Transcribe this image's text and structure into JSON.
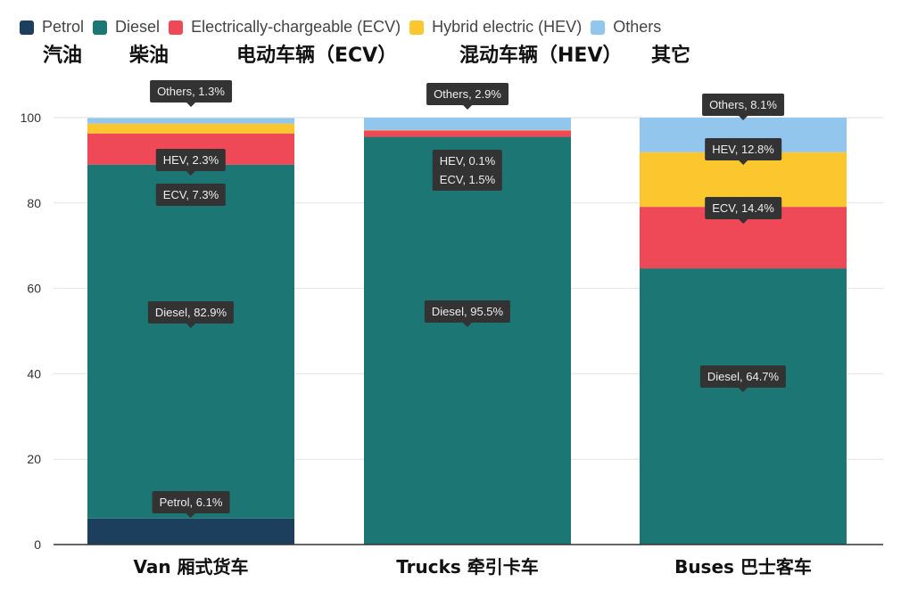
{
  "legend": [
    {
      "label": "Petrol",
      "cn": "汽油",
      "color": "#1d3f5e"
    },
    {
      "label": "Diesel",
      "cn": "柴油",
      "color": "#1c7673"
    },
    {
      "label": "Electrically-chargeable (ECV)",
      "cn": "电动车辆（ECV）",
      "color": "#ef4857"
    },
    {
      "label": "Hybrid electric (HEV)",
      "cn": "混动车辆（HEV）",
      "color": "#fcc62e"
    },
    {
      "label": "Others",
      "cn": "其它",
      "color": "#92c6ec"
    }
  ],
  "chart_data": {
    "type": "bar",
    "stacked": true,
    "categories": [
      "Van 厢式货车",
      "Trucks 牵引卡车",
      "Buses 巴士客车"
    ],
    "series": [
      {
        "name": "Petrol",
        "short": "Petrol",
        "values": [
          6.1,
          0,
          0
        ]
      },
      {
        "name": "Diesel",
        "short": "Diesel",
        "values": [
          82.9,
          95.5,
          64.7
        ]
      },
      {
        "name": "Electrically-chargeable (ECV)",
        "short": "ECV",
        "values": [
          7.3,
          1.5,
          14.4
        ]
      },
      {
        "name": "Hybrid electric (HEV)",
        "short": "HEV",
        "values": [
          2.3,
          0.1,
          12.8
        ]
      },
      {
        "name": "Others",
        "short": "Others",
        "values": [
          1.3,
          2.9,
          8.1
        ]
      }
    ],
    "ylim": [
      0,
      100
    ],
    "yticks": [
      0,
      20,
      40,
      60,
      80,
      100
    ],
    "grid": true,
    "legend": "top-left",
    "tooltips": [
      "Others, 1.3%",
      "HEV, 2.3%",
      "ECV, 7.3%",
      "Diesel, 82.9%",
      "Petrol, 6.1%",
      "Others, 2.9%",
      "HEV, 0.1%",
      "ECV, 1.5%",
      "Diesel, 95.5%",
      "Others, 8.1%",
      "HEV, 12.8%",
      "ECV, 14.4%",
      "Diesel, 64.7%"
    ]
  }
}
